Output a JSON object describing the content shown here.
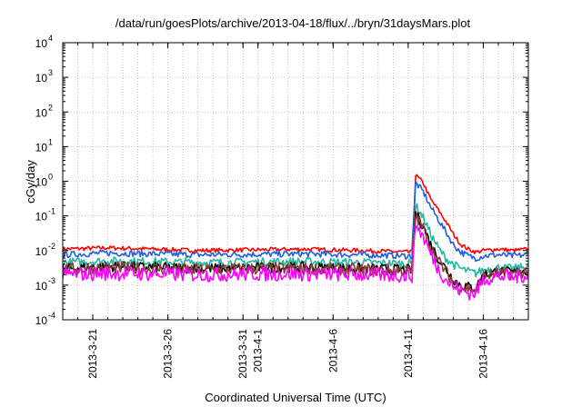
{
  "chart_data": {
    "type": "line",
    "title": "/data/run/goesPlots/archive/2013-04-18/flux/../bryn/31daysMars.plot",
    "xlabel": "Coordinated Universal Time (UTC)",
    "ylabel": "cGy/day",
    "y_scale": "log",
    "ylim": [
      0.0001,
      10000
    ],
    "xlim": [
      "2013-03-19",
      "2013-04-19"
    ],
    "grid": true,
    "y_ticks": [
      {
        "base": "10",
        "exp": "-4",
        "value": 0.0001
      },
      {
        "base": "10",
        "exp": "-3",
        "value": 0.001
      },
      {
        "base": "10",
        "exp": "-2",
        "value": 0.01
      },
      {
        "base": "10",
        "exp": "-1",
        "value": 0.1
      },
      {
        "base": "10",
        "exp": "0",
        "value": 1
      },
      {
        "base": "10",
        "exp": "1",
        "value": 10
      },
      {
        "base": "10",
        "exp": "2",
        "value": 100
      },
      {
        "base": "10",
        "exp": "3",
        "value": 1000
      },
      {
        "base": "10",
        "exp": "4",
        "value": 10000
      }
    ],
    "x_ticks": [
      {
        "date": "2013-03-21",
        "label": "2013-3-21"
      },
      {
        "date": "2013-03-26",
        "label": "2013-3-26"
      },
      {
        "date": "2013-03-31",
        "label": "2013-3-31"
      },
      {
        "date": "2013-04-01",
        "label": "2013-4-1"
      },
      {
        "date": "2013-04-06",
        "label": "2013-4-6"
      },
      {
        "date": "2013-04-11",
        "label": "2013-4-11"
      },
      {
        "date": "2013-04-16",
        "label": "2013-4-16"
      }
    ],
    "series": [
      {
        "color": "#ff0000",
        "x": [
          "2013-03-19",
          "2013-03-22",
          "2013-03-25",
          "2013-03-28",
          "2013-04-01",
          "2013-04-04",
          "2013-04-08",
          "2013-04-11",
          "2013-04-11T06:00",
          "2013-04-11T12:00",
          "2013-04-12",
          "2013-04-12T12:00",
          "2013-04-13",
          "2013-04-13T12:00",
          "2013-04-14",
          "2013-04-14T12:00",
          "2013-04-15",
          "2013-04-15T12:00",
          "2013-04-16",
          "2013-04-17",
          "2013-04-18",
          "2013-04-19"
        ],
        "values": [
          0.011,
          0.012,
          0.011,
          0.01,
          0.0105,
          0.011,
          0.01,
          0.009,
          0.009,
          1.5,
          0.9,
          0.3,
          0.15,
          0.07,
          0.03,
          0.015,
          0.011,
          0.009,
          0.01,
          0.011,
          0.01,
          0.011
        ]
      },
      {
        "color": "#1f5fe0",
        "x": [
          "2013-03-19",
          "2013-03-22",
          "2013-03-25",
          "2013-03-28",
          "2013-04-01",
          "2013-04-04",
          "2013-04-08",
          "2013-04-11",
          "2013-04-11T06:00",
          "2013-04-11T12:00",
          "2013-04-12",
          "2013-04-12T12:00",
          "2013-04-13",
          "2013-04-13T12:00",
          "2013-04-14",
          "2013-04-14T12:00",
          "2013-04-15",
          "2013-04-15T12:00",
          "2013-04-16",
          "2013-04-17",
          "2013-04-18",
          "2013-04-19"
        ],
        "values": [
          0.0075,
          0.0085,
          0.008,
          0.0075,
          0.0078,
          0.008,
          0.0075,
          0.007,
          0.007,
          0.9,
          0.5,
          0.18,
          0.08,
          0.035,
          0.015,
          0.009,
          0.007,
          0.006,
          0.007,
          0.0075,
          0.007,
          0.0075
        ]
      },
      {
        "color": "#20b8a0",
        "x": [
          "2013-03-19",
          "2013-03-22",
          "2013-03-25",
          "2013-03-28",
          "2013-04-01",
          "2013-04-04",
          "2013-04-08",
          "2013-04-11",
          "2013-04-11T06:00",
          "2013-04-11T12:00",
          "2013-04-12",
          "2013-04-12T12:00",
          "2013-04-13",
          "2013-04-13T12:00",
          "2013-04-14",
          "2013-04-14T12:00",
          "2013-04-15",
          "2013-04-15T12:00",
          "2013-04-16",
          "2013-04-17",
          "2013-04-18",
          "2013-04-19"
        ],
        "values": [
          0.0045,
          0.005,
          0.0048,
          0.0045,
          0.0047,
          0.0048,
          0.0045,
          0.0042,
          0.0042,
          0.2,
          0.09,
          0.03,
          0.012,
          0.006,
          0.004,
          0.003,
          0.0025,
          0.0022,
          0.0028,
          0.0032,
          0.003,
          0.0035
        ]
      },
      {
        "color": "#000000",
        "x": [
          "2013-03-19",
          "2013-03-22",
          "2013-03-25",
          "2013-03-28",
          "2013-04-01",
          "2013-04-04",
          "2013-04-08",
          "2013-04-11",
          "2013-04-11T06:00",
          "2013-04-11T12:00",
          "2013-04-12",
          "2013-04-12T12:00",
          "2013-04-13",
          "2013-04-13T12:00",
          "2013-04-14",
          "2013-04-14T12:00",
          "2013-04-15",
          "2013-04-15T12:00",
          "2013-04-16",
          "2013-04-17",
          "2013-04-18",
          "2013-04-19"
        ],
        "values": [
          0.003,
          0.0035,
          0.0033,
          0.003,
          0.0032,
          0.0033,
          0.003,
          0.0028,
          0.0028,
          0.12,
          0.05,
          0.015,
          0.006,
          0.003,
          0.0015,
          0.001,
          0.0009,
          0.0008,
          0.002,
          0.0025,
          0.0023,
          0.0028
        ]
      },
      {
        "color": "#8b3a3a",
        "x": [
          "2013-03-19",
          "2013-03-22",
          "2013-03-25",
          "2013-03-28",
          "2013-04-01",
          "2013-04-04",
          "2013-04-08",
          "2013-04-11",
          "2013-04-11T06:00",
          "2013-04-11T12:00",
          "2013-04-12",
          "2013-04-12T12:00",
          "2013-04-13",
          "2013-04-13T12:00",
          "2013-04-14",
          "2013-04-14T12:00",
          "2013-04-15",
          "2013-04-15T12:00",
          "2013-04-16",
          "2013-04-17",
          "2013-04-18",
          "2013-04-19"
        ],
        "values": [
          0.0028,
          0.0032,
          0.003,
          0.0028,
          0.003,
          0.003,
          0.0028,
          0.0026,
          0.0026,
          0.1,
          0.045,
          0.013,
          0.005,
          0.0025,
          0.0013,
          0.0009,
          0.0008,
          0.0007,
          0.0018,
          0.0023,
          0.0021,
          0.0026
        ]
      },
      {
        "color": "#ff00ff",
        "x": [
          "2013-03-19",
          "2013-03-22",
          "2013-03-25",
          "2013-03-28",
          "2013-04-01",
          "2013-04-04",
          "2013-04-08",
          "2013-04-11",
          "2013-04-11T06:00",
          "2013-04-11T12:00",
          "2013-04-12",
          "2013-04-12T12:00",
          "2013-04-13",
          "2013-04-13T12:00",
          "2013-04-14",
          "2013-04-14T12:00",
          "2013-04-15",
          "2013-04-15T12:00",
          "2013-04-16",
          "2013-04-17",
          "2013-04-18",
          "2013-04-19"
        ],
        "values": [
          0.002,
          0.0022,
          0.0021,
          0.002,
          0.0021,
          0.0021,
          0.002,
          0.0019,
          0.0019,
          0.06,
          0.025,
          0.008,
          0.003,
          0.0015,
          0.0009,
          0.0007,
          0.0006,
          0.0006,
          0.0015,
          0.0018,
          0.0017,
          0.002
        ]
      }
    ]
  }
}
